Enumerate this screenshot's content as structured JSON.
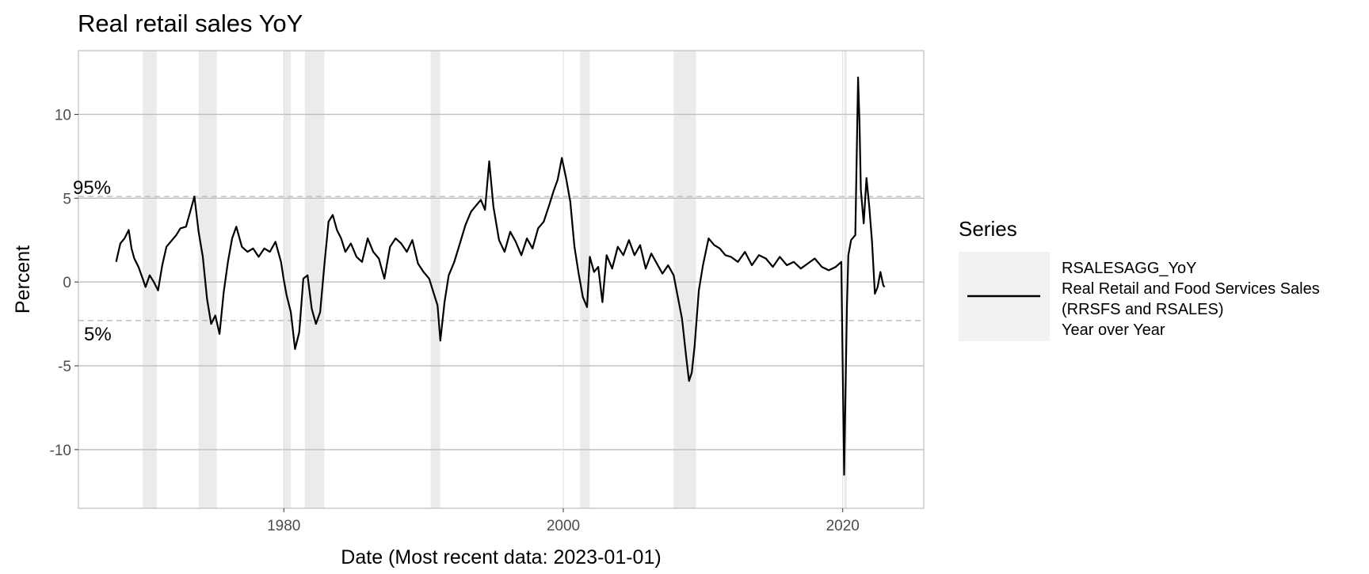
{
  "chart_data": {
    "type": "line",
    "title": "Real retail sales YoY",
    "xlabel": "Date (Most recent data: 2023-01-01)",
    "ylabel": "Percent",
    "xlim": [
      1965.3,
      2025.8
    ],
    "ylim": [
      -13.5,
      13.8
    ],
    "x_ticks": [
      1980,
      2000,
      2020
    ],
    "y_ticks": [
      -10,
      -5,
      0,
      5,
      10
    ],
    "grid": true,
    "recessions": [
      [
        1969.9,
        1970.9
      ],
      [
        1973.9,
        1975.2
      ],
      [
        1980.0,
        1980.5
      ],
      [
        1981.5,
        1982.9
      ],
      [
        1990.5,
        1991.2
      ],
      [
        2001.2,
        2001.9
      ],
      [
        2007.9,
        2009.5
      ],
      [
        2020.1,
        2020.3
      ]
    ],
    "reference_lines": [
      {
        "label": "95%",
        "value": 5.1
      },
      {
        "label": "5%",
        "value": -2.3
      }
    ],
    "series": [
      {
        "name": "RSALESAGG_YoY",
        "x": [
          1968.0,
          1968.3,
          1968.6,
          1968.9,
          1969.1,
          1969.3,
          1969.6,
          1969.9,
          1970.1,
          1970.4,
          1970.7,
          1971.0,
          1971.3,
          1971.6,
          1972.0,
          1972.3,
          1972.6,
          1973.0,
          1973.3,
          1973.6,
          1973.9,
          1974.2,
          1974.5,
          1974.8,
          1975.1,
          1975.4,
          1975.7,
          1976.0,
          1976.3,
          1976.6,
          1977.0,
          1977.4,
          1977.8,
          1978.2,
          1978.6,
          1979.0,
          1979.4,
          1979.8,
          1980.0,
          1980.2,
          1980.5,
          1980.8,
          1981.1,
          1981.4,
          1981.7,
          1982.0,
          1982.3,
          1982.6,
          1982.9,
          1983.2,
          1983.5,
          1983.8,
          1984.1,
          1984.4,
          1984.8,
          1985.2,
          1985.6,
          1986.0,
          1986.4,
          1986.8,
          1987.2,
          1987.6,
          1988.0,
          1988.4,
          1988.8,
          1989.2,
          1989.6,
          1990.0,
          1990.4,
          1990.7,
          1991.0,
          1991.2,
          1991.5,
          1991.8,
          1992.2,
          1992.6,
          1993.0,
          1993.4,
          1993.8,
          1994.1,
          1994.4,
          1994.7,
          1995.0,
          1995.4,
          1995.8,
          1996.2,
          1996.6,
          1997.0,
          1997.4,
          1997.8,
          1998.2,
          1998.6,
          1999.0,
          1999.3,
          1999.6,
          1999.9,
          2000.2,
          2000.5,
          2000.8,
          2001.1,
          2001.4,
          2001.7,
          2001.9,
          2002.2,
          2002.5,
          2002.8,
          2003.1,
          2003.5,
          2003.9,
          2004.3,
          2004.7,
          2005.1,
          2005.5,
          2005.9,
          2006.3,
          2006.7,
          2007.1,
          2007.5,
          2007.9,
          2008.2,
          2008.5,
          2008.8,
          2009.0,
          2009.2,
          2009.4,
          2009.7,
          2010.0,
          2010.4,
          2010.8,
          2011.2,
          2011.6,
          2012.0,
          2012.5,
          2013.0,
          2013.5,
          2014.0,
          2014.5,
          2015.0,
          2015.5,
          2016.0,
          2016.5,
          2017.0,
          2017.5,
          2018.0,
          2018.5,
          2019.0,
          2019.5,
          2019.9,
          2020.1,
          2020.3,
          2020.4,
          2020.6,
          2020.9,
          2021.1,
          2021.2,
          2021.3,
          2021.5,
          2021.7,
          2021.9,
          2022.1,
          2022.3,
          2022.5,
          2022.7,
          2022.9,
          2023.0
        ],
        "y": [
          1.2,
          2.3,
          2.6,
          3.1,
          2.0,
          1.4,
          0.9,
          0.2,
          -0.3,
          0.4,
          0.0,
          -0.5,
          1.0,
          2.1,
          2.5,
          2.8,
          3.2,
          3.3,
          4.2,
          5.1,
          3.0,
          1.5,
          -1.0,
          -2.5,
          -2.0,
          -3.1,
          -0.6,
          1.2,
          2.6,
          3.3,
          2.1,
          1.8,
          2.0,
          1.5,
          2.0,
          1.8,
          2.4,
          1.2,
          0.1,
          -0.8,
          -1.8,
          -4.0,
          -3.0,
          0.2,
          0.4,
          -1.6,
          -2.5,
          -1.8,
          1.0,
          3.6,
          4.0,
          3.1,
          2.6,
          1.8,
          2.3,
          1.5,
          1.2,
          2.6,
          1.8,
          1.4,
          0.2,
          2.1,
          2.6,
          2.3,
          1.8,
          2.5,
          1.1,
          0.6,
          0.2,
          -0.6,
          -1.4,
          -3.5,
          -1.2,
          0.4,
          1.2,
          2.3,
          3.4,
          4.2,
          4.6,
          4.9,
          4.3,
          7.2,
          4.5,
          2.5,
          1.8,
          3.0,
          2.4,
          1.6,
          2.6,
          2.0,
          3.2,
          3.6,
          4.6,
          5.4,
          6.1,
          7.4,
          6.2,
          4.8,
          2.1,
          0.5,
          -0.9,
          -1.5,
          1.5,
          0.6,
          0.9,
          -1.2,
          1.6,
          0.8,
          2.1,
          1.6,
          2.5,
          1.6,
          2.2,
          0.8,
          1.7,
          1.1,
          0.5,
          1.0,
          0.4,
          -0.9,
          -2.2,
          -4.5,
          -5.9,
          -5.4,
          -3.8,
          -0.5,
          1.0,
          2.6,
          2.2,
          2.0,
          1.6,
          1.5,
          1.2,
          1.8,
          1.0,
          1.6,
          1.4,
          0.9,
          1.5,
          1.0,
          1.2,
          0.8,
          1.1,
          1.4,
          0.9,
          0.7,
          0.9,
          1.2,
          -11.5,
          -1.5,
          1.6,
          2.5,
          2.8,
          12.2,
          9.5,
          5.5,
          3.5,
          6.2,
          4.5,
          2.4,
          -0.7,
          -0.3,
          0.6,
          -0.2,
          -0.3
        ]
      }
    ],
    "legend": {
      "title": "Series",
      "position": "right",
      "lines": [
        "RSALESAGG_YoY",
        "Real Retail and Food Services Sales",
        "(RRSFS and RSALES)",
        "Year over Year"
      ]
    },
    "colors": {
      "line": "#000000",
      "recession_band": "#ebebeb",
      "grid": "#bebebe",
      "reference_line": "#bdbdbd",
      "legend_key_bg": "#f2f2f2"
    }
  }
}
